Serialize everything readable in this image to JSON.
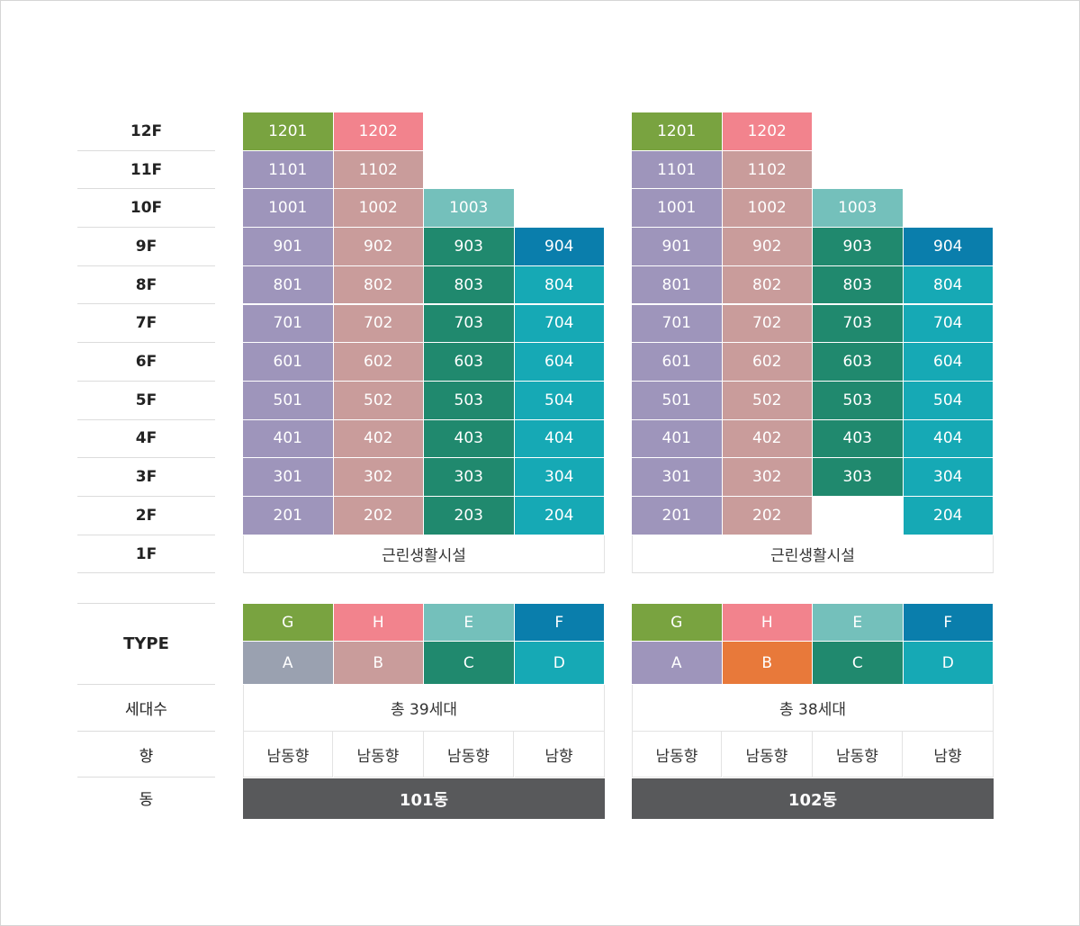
{
  "colors": {
    "A_101": "#9e95bb",
    "A_102": "#9e95bb",
    "A_type_101": "#9aa1b0",
    "B": "#c99c9b",
    "B_type_102": "#e8793a",
    "C": "#20896e",
    "D": "#16a9b5",
    "E": "#74c0bb",
    "F": "#0a7eac",
    "G": "#79a340",
    "H": "#f2838d",
    "dong_bar": "#58595b"
  },
  "floors": [
    "12F",
    "11F",
    "10F",
    "9F",
    "8F",
    "7F",
    "6F",
    "5F",
    "4F",
    "3F",
    "2F",
    "1F"
  ],
  "buildings": [
    {
      "name": "101동",
      "columns": [
        [
          "1201",
          "1101",
          "1001",
          "901",
          "801",
          "701",
          "601",
          "501",
          "401",
          "301",
          "201"
        ],
        [
          "1202",
          "1102",
          "1002",
          "902",
          "802",
          "702",
          "602",
          "502",
          "402",
          "302",
          "202"
        ],
        [
          "",
          "",
          "1003",
          "903",
          "803",
          "703",
          "603",
          "503",
          "403",
          "303",
          "203"
        ],
        [
          "",
          "",
          "",
          "904",
          "804",
          "704",
          "604",
          "504",
          "404",
          "304",
          "204"
        ]
      ],
      "base": "근린생활시설",
      "types_top": [
        "G",
        "H",
        "E",
        "F"
      ],
      "types_bottom": [
        "A",
        "B",
        "C",
        "D"
      ],
      "households": "총 39세대",
      "directions": [
        "남동향",
        "남동향",
        "남동향",
        "남향"
      ]
    },
    {
      "name": "102동",
      "columns": [
        [
          "1201",
          "1101",
          "1001",
          "901",
          "801",
          "701",
          "601",
          "501",
          "401",
          "301",
          "201"
        ],
        [
          "1202",
          "1102",
          "1002",
          "902",
          "802",
          "702",
          "602",
          "502",
          "402",
          "302",
          "202"
        ],
        [
          "",
          "",
          "1003",
          "903",
          "803",
          "703",
          "603",
          "503",
          "403",
          "303",
          ""
        ],
        [
          "",
          "",
          "",
          "904",
          "804",
          "704",
          "604",
          "504",
          "404",
          "304",
          "204"
        ]
      ],
      "base": "근린생활시설",
      "types_top": [
        "G",
        "H",
        "E",
        "F"
      ],
      "types_bottom": [
        "A",
        "B",
        "C",
        "D"
      ],
      "households": "총 38세대",
      "directions": [
        "남동향",
        "남동향",
        "남동향",
        "남향"
      ]
    }
  ],
  "labels": {
    "type": "TYPE",
    "households": "세대수",
    "direction": "향",
    "dong": "동"
  }
}
